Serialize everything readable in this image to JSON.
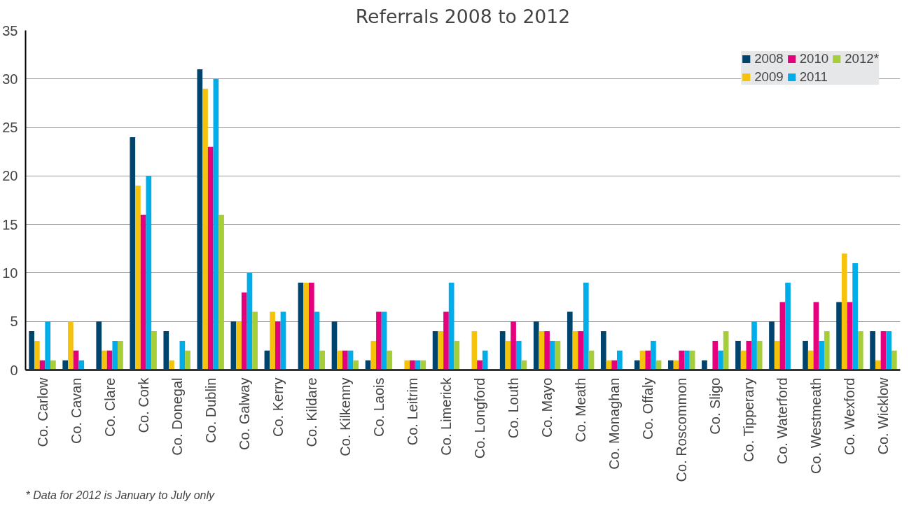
{
  "chart_data": {
    "type": "bar",
    "title": "Referrals 2008 to 2012",
    "categories": [
      "Co. Carlow",
      "Co. Cavan",
      "Co. Clare",
      "Co. Cork",
      "Co. Donegal",
      "Co. Dublin",
      "Co. Galway",
      "Co. Kerry",
      "Co. Kildare",
      "Co. Kilkenny",
      "Co. Laois",
      "Co. Leitrim",
      "Co. Limerick",
      "Co. Longford",
      "Co. Louth",
      "Co. Mayo",
      "Co. Meath",
      "Co. Monaghan",
      "Co. Offaly",
      "Co. Roscommon",
      "Co. Sligo",
      "Co. Tipperary",
      "Co. Waterford",
      "Co. Westmeath",
      "Co. Wexford",
      "Co. Wicklow"
    ],
    "series": [
      {
        "name": "2008",
        "color": "#00446e",
        "values": [
          4,
          1,
          5,
          24,
          4,
          31,
          5,
          2,
          9,
          5,
          1,
          null,
          4,
          null,
          4,
          5,
          6,
          4,
          1,
          1,
          1,
          3,
          5,
          3,
          7,
          4
        ]
      },
      {
        "name": "2009",
        "color": "#f5c20d",
        "values": [
          3,
          5,
          2,
          19,
          1,
          29,
          5,
          6,
          9,
          2,
          3,
          1,
          4,
          4,
          3,
          4,
          4,
          1,
          2,
          1,
          null,
          2,
          3,
          2,
          12,
          1
        ]
      },
      {
        "name": "2010",
        "color": "#e5007e",
        "values": [
          1,
          2,
          2,
          16,
          null,
          23,
          8,
          5,
          9,
          2,
          6,
          1,
          6,
          1,
          5,
          4,
          4,
          1,
          2,
          2,
          3,
          3,
          7,
          7,
          7,
          4
        ]
      },
      {
        "name": "2011",
        "color": "#00adeb",
        "values": [
          5,
          1,
          3,
          20,
          3,
          30,
          10,
          6,
          6,
          2,
          6,
          1,
          9,
          2,
          3,
          3,
          9,
          2,
          3,
          2,
          2,
          5,
          9,
          3,
          11,
          4
        ]
      },
      {
        "name": "2012*",
        "color": "#a6ce39",
        "values": [
          1,
          null,
          3,
          4,
          2,
          16,
          6,
          null,
          2,
          1,
          2,
          1,
          3,
          null,
          1,
          3,
          2,
          null,
          1,
          2,
          4,
          3,
          null,
          4,
          4,
          2
        ]
      }
    ],
    "ylim": [
      0,
      35
    ],
    "yticks": [
      0,
      5,
      10,
      15,
      20,
      25,
      30,
      35
    ],
    "grid": "y",
    "legend": "top right",
    "annotations": [
      "*  Data for 2012 is January to July only"
    ]
  }
}
